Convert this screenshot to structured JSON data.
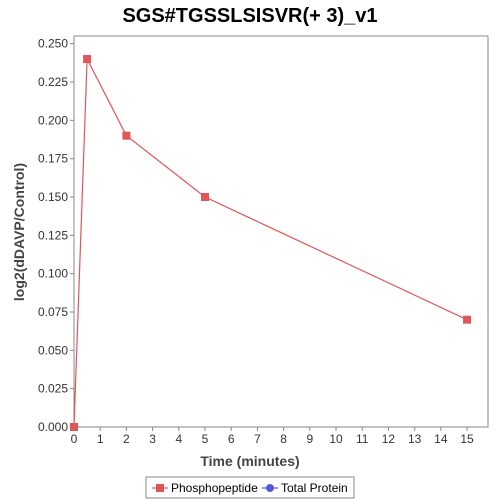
{
  "chart_data": {
    "type": "line",
    "title": "SGS#TGSSLSISVR(+ 3)_v1",
    "xlabel": "Time (minutes)",
    "ylabel": "log2(dDAVP/Control)",
    "xlim": [
      0,
      15.8
    ],
    "ylim": [
      0,
      0.255
    ],
    "x_ticks": [
      "0",
      "1",
      "2",
      "3",
      "4",
      "5",
      "6",
      "7",
      "8",
      "9",
      "10",
      "11",
      "12",
      "13",
      "14",
      "15"
    ],
    "y_ticks": [
      "0.000",
      "0.025",
      "0.050",
      "0.075",
      "0.100",
      "0.125",
      "0.150",
      "0.175",
      "0.200",
      "0.225",
      "0.250"
    ],
    "grid": false,
    "legend_position": "bottom-center",
    "series": [
      {
        "name": "Phosphopeptide",
        "color": "#e05555",
        "marker": "square",
        "points": [
          {
            "x": 0,
            "y": 0.0
          },
          {
            "x": 0.5,
            "y": 0.24
          },
          {
            "x": 2,
            "y": 0.19
          },
          {
            "x": 5,
            "y": 0.15
          },
          {
            "x": 15,
            "y": 0.07
          }
        ]
      },
      {
        "name": "Total Protein",
        "color": "#5555e0",
        "marker": "circle",
        "points": []
      }
    ]
  }
}
